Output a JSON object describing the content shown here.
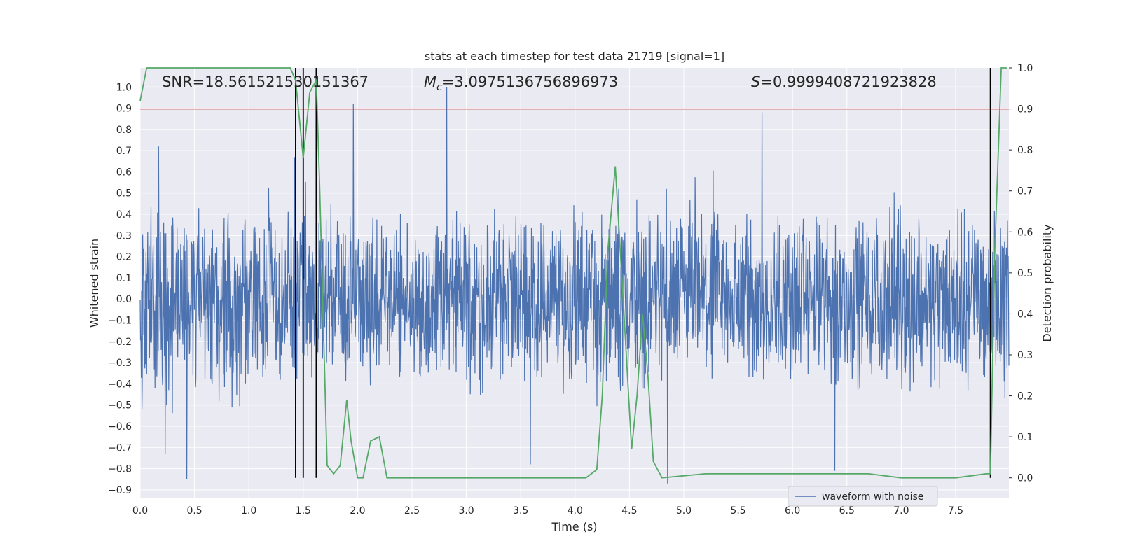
{
  "chart_data": {
    "type": "line",
    "title": "stats at each timestep for test data 21719 [signal=1]",
    "xlabel": "Time (s)",
    "ylabel_left": "Whitened strain",
    "ylabel_right": "Detection probability",
    "xlim": [
      0,
      7.99
    ],
    "ylim_left": [
      -0.94,
      1.09
    ],
    "ylim_right": [
      -0.05,
      1.0
    ],
    "x_ticks": [
      "0.0",
      "0.5",
      "1.0",
      "1.5",
      "2.0",
      "2.5",
      "3.0",
      "3.5",
      "4.0",
      "4.5",
      "5.0",
      "5.5",
      "6.0",
      "6.5",
      "7.0",
      "7.5"
    ],
    "y_ticks_left": [
      "1.0",
      "0.9",
      "0.8",
      "0.7",
      "0.6",
      "0.5",
      "0.4",
      "0.3",
      "0.2",
      "0.1",
      "0.0",
      "-0.1",
      "-0.2",
      "-0.3",
      "-0.4",
      "-0.5",
      "-0.6",
      "-0.7",
      "-0.8",
      "-0.9"
    ],
    "y_ticks_right": [
      "1.0",
      "0.9",
      "0.8",
      "0.7",
      "0.6",
      "0.5",
      "0.4",
      "0.3",
      "0.2",
      "0.1",
      "0.0"
    ],
    "stats": {
      "snr": "SNR=18.561521530151367",
      "mc_symbol": "M",
      "mc_sub": "c",
      "mc_value": "=3.0975136756896973",
      "s_symbol": "S",
      "s_value": "=0.9999408721923828"
    },
    "threshold": {
      "value": 0.9,
      "axis": "right",
      "color": "#c44e52"
    },
    "vertical_markers": [
      1.43,
      1.5,
      1.62,
      7.82
    ],
    "series": [
      {
        "name": "waveform with noise",
        "axis": "left",
        "color": "#4c72b0",
        "band_typical": 0.38,
        "spikes": [
          {
            "x": 0.17,
            "y": 0.72
          },
          {
            "x": 0.43,
            "y": -0.85
          },
          {
            "x": 0.23,
            "y": -0.73
          },
          {
            "x": 1.96,
            "y": 0.92
          },
          {
            "x": 2.82,
            "y": 1.0
          },
          {
            "x": 5.72,
            "y": 0.88
          },
          {
            "x": 6.39,
            "y": -0.81
          },
          {
            "x": 4.85,
            "y": -0.87
          },
          {
            "x": 3.59,
            "y": -0.78
          },
          {
            "x": 1.42,
            "y": 0.67
          },
          {
            "x": 4.4,
            "y": 0.52
          }
        ]
      },
      {
        "name": "",
        "axis": "right",
        "color": "#55a868",
        "x": [
          0.0,
          0.06,
          0.2,
          0.6,
          1.0,
          1.38,
          1.43,
          1.5,
          1.56,
          1.62,
          1.65,
          1.72,
          1.78,
          1.84,
          1.9,
          1.94,
          2.0,
          2.05,
          2.12,
          2.2,
          2.27,
          2.33,
          2.45,
          3.0,
          3.5,
          4.1,
          4.2,
          4.25,
          4.3,
          4.37,
          4.45,
          4.52,
          4.57,
          4.62,
          4.67,
          4.72,
          4.8,
          5.2,
          5.6,
          6.2,
          6.5,
          6.7,
          7.0,
          7.5,
          7.78,
          7.82,
          7.86,
          7.92,
          7.97
        ],
        "y": [
          0.92,
          1.0,
          1.0,
          1.0,
          1.0,
          1.0,
          0.97,
          0.78,
          0.94,
          0.97,
          0.72,
          0.03,
          0.01,
          0.03,
          0.19,
          0.09,
          0.0,
          0.0,
          0.09,
          0.1,
          0.0,
          0.0,
          0.0,
          0.0,
          0.0,
          0.0,
          0.02,
          0.2,
          0.55,
          0.76,
          0.4,
          0.07,
          0.2,
          0.4,
          0.25,
          0.04,
          0.0,
          0.01,
          0.01,
          0.01,
          0.01,
          0.01,
          0.0,
          0.0,
          0.01,
          0.01,
          0.55,
          1.0,
          1.0
        ]
      }
    ],
    "legend": {
      "entries": [
        "waveform with noise"
      ],
      "placement": "lower right"
    },
    "grid": true
  }
}
